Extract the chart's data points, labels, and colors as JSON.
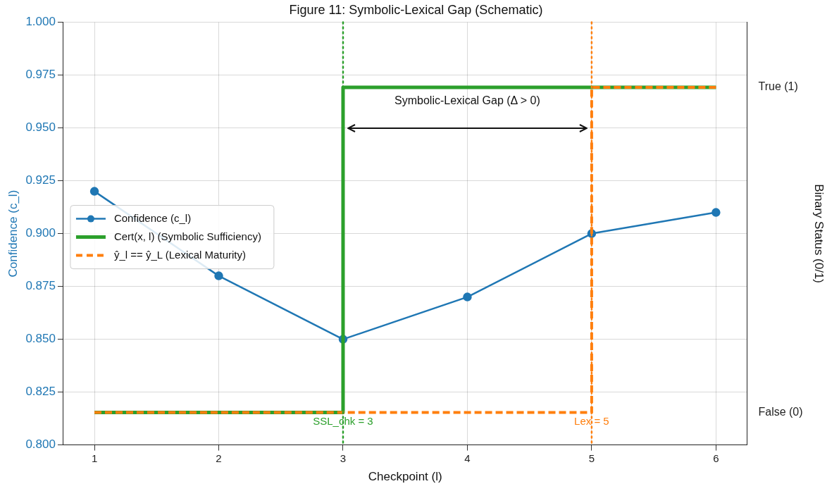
{
  "chart_data": {
    "type": "line",
    "title": "Figure 11: Symbolic-Lexical Gap (Schematic)",
    "xlabel": "Checkpoint (l)",
    "ylabel": "Confidence (c_l)",
    "y2label": "Binary Status (0/1)",
    "x": [
      1,
      2,
      3,
      4,
      5,
      6
    ],
    "series": [
      {
        "name": "Confidence (c_l)",
        "color": "#1f77b4",
        "values": [
          0.92,
          0.88,
          0.85,
          0.87,
          0.9,
          0.91
        ],
        "marker": "circle"
      },
      {
        "name": "Cert(x, l) (Symbolic Sufficiency)",
        "type": "step",
        "axis": "y2",
        "color": "#2ca02c",
        "values": [
          0,
          0,
          1,
          1,
          1,
          1
        ]
      },
      {
        "name": "ŷ_l == ŷ_L (Lexical Maturity)",
        "type": "step",
        "axis": "y2",
        "color": "#ff7f0e",
        "values": [
          0,
          0,
          0,
          0,
          1,
          1
        ],
        "line_style": "dashed"
      }
    ],
    "xlim": [
      0.75,
      6.25
    ],
    "xticks": [
      1,
      2,
      3,
      4,
      5,
      6
    ],
    "ylim": [
      0.8,
      1.0
    ],
    "yticks": [
      {
        "value": 0.8,
        "label": "0.800"
      },
      {
        "value": 0.825,
        "label": "0.825"
      },
      {
        "value": 0.85,
        "label": "0.850"
      },
      {
        "value": 0.875,
        "label": "0.875"
      },
      {
        "value": 0.9,
        "label": "0.900"
      },
      {
        "value": 0.925,
        "label": "0.925"
      },
      {
        "value": 0.95,
        "label": "0.950"
      },
      {
        "value": 0.975,
        "label": "0.975"
      },
      {
        "value": 1.0,
        "label": "1.000"
      }
    ],
    "y2lim": [
      -0.1,
      1.2
    ],
    "y2ticks": [
      {
        "value": 0,
        "label": "False (0)"
      },
      {
        "value": 1,
        "label": "True (1)"
      }
    ],
    "ref_lines": [
      {
        "axis": "x",
        "value": 3,
        "label": "SSL_chk = 3",
        "color": "#2ca02c",
        "line_style": "dotted"
      },
      {
        "axis": "x",
        "value": 5,
        "label": "Lex = 5",
        "color": "#ff7f0e",
        "line_style": "dotted"
      }
    ],
    "annotations": [
      "Symbolic-Lexical Gap (Δ > 0)"
    ],
    "grid": true,
    "legend": "left"
  }
}
